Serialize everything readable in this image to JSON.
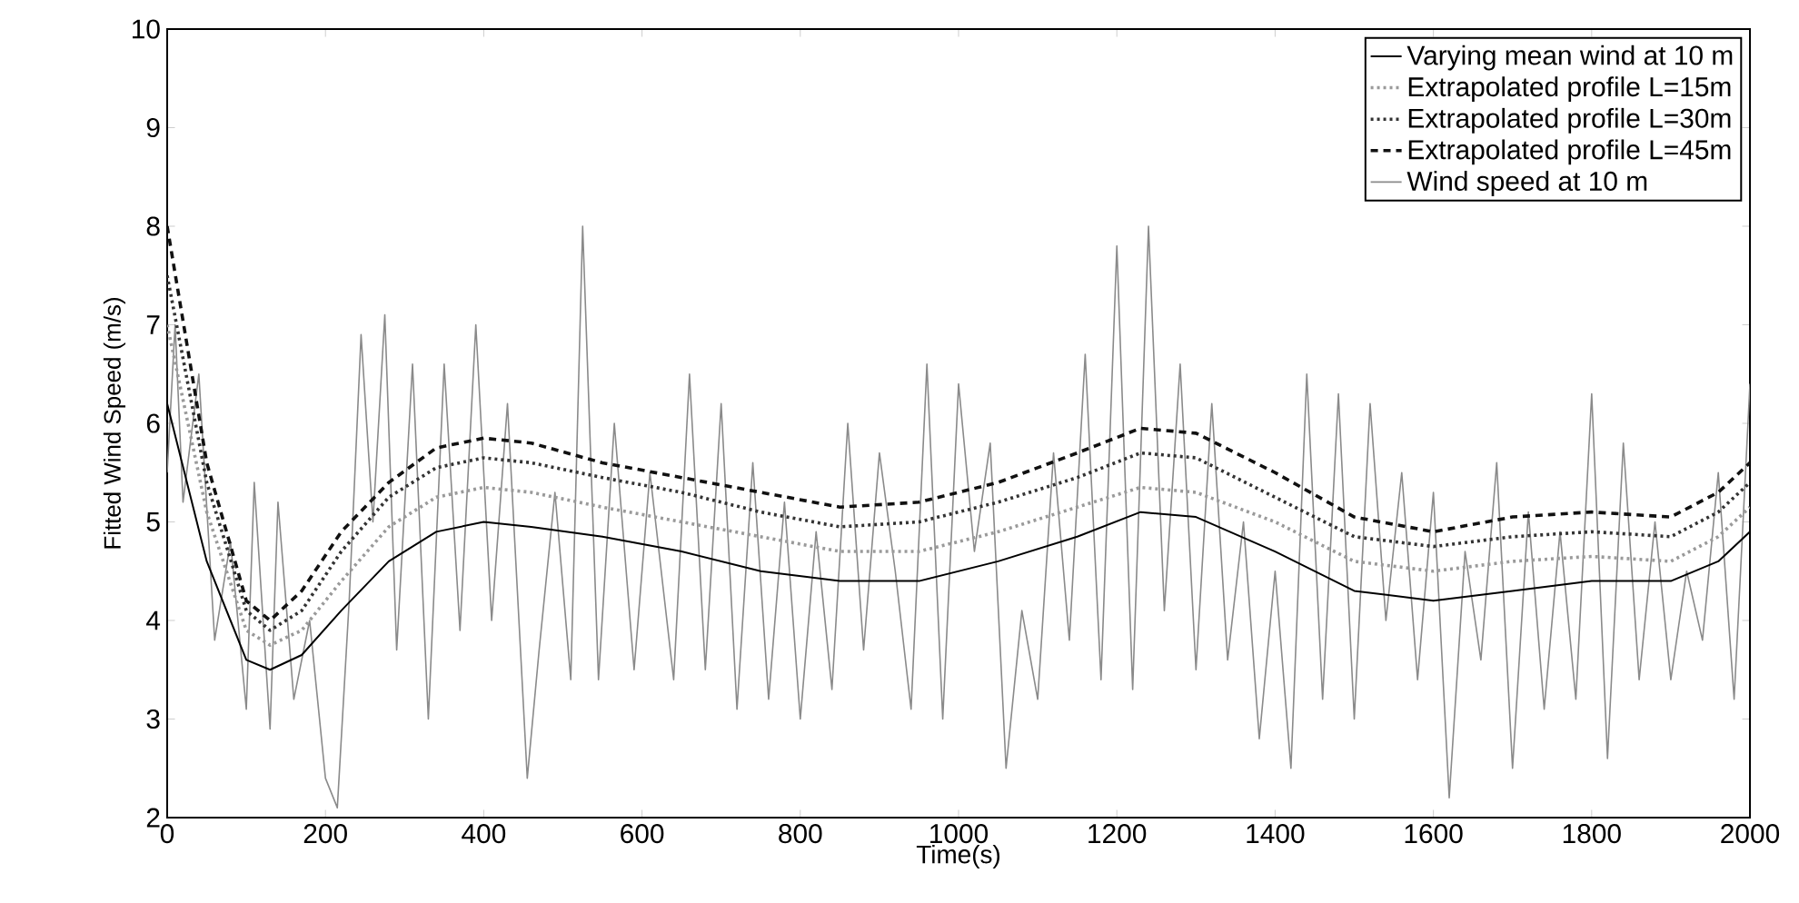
{
  "chart_data": {
    "type": "line",
    "xlabel": "Time(s)",
    "ylabel": "Fitted Wind Speed (m/s)",
    "xlim": [
      0,
      2000
    ],
    "ylim": [
      2,
      10
    ],
    "xticks": [
      0,
      200,
      400,
      600,
      800,
      1000,
      1200,
      1400,
      1600,
      1800,
      2000
    ],
    "yticks": [
      2,
      3,
      4,
      5,
      6,
      7,
      8,
      9,
      10
    ],
    "grid": false,
    "legend": "top right",
    "series": [
      {
        "name": "Varying mean wind at 10 m",
        "color": "#000000",
        "line_style": "solid",
        "x": [
          0,
          50,
          100,
          130,
          170,
          220,
          280,
          340,
          400,
          460,
          550,
          650,
          750,
          850,
          950,
          1050,
          1150,
          1230,
          1300,
          1400,
          1500,
          1600,
          1700,
          1800,
          1900,
          1960,
          2000
        ],
        "values": [
          6.2,
          4.6,
          3.6,
          3.5,
          3.65,
          4.1,
          4.6,
          4.9,
          5.0,
          4.95,
          4.85,
          4.7,
          4.5,
          4.4,
          4.4,
          4.6,
          4.85,
          5.1,
          5.05,
          4.7,
          4.3,
          4.2,
          4.3,
          4.4,
          4.4,
          4.6,
          4.9
        ]
      },
      {
        "name": "Extrapolated profile L=15m",
        "color": "#9a9a9a",
        "line_style": "dotted",
        "x": [
          0,
          50,
          100,
          130,
          170,
          220,
          280,
          340,
          400,
          460,
          550,
          650,
          750,
          850,
          950,
          1050,
          1150,
          1230,
          1300,
          1400,
          1500,
          1600,
          1700,
          1800,
          1900,
          1960,
          2000
        ],
        "values": [
          7.0,
          5.1,
          3.9,
          3.75,
          3.9,
          4.4,
          4.95,
          5.25,
          5.35,
          5.3,
          5.15,
          5.0,
          4.85,
          4.7,
          4.7,
          4.9,
          5.15,
          5.35,
          5.3,
          5.0,
          4.6,
          4.5,
          4.6,
          4.65,
          4.6,
          4.85,
          5.15
        ]
      },
      {
        "name": "Extrapolated profile L=30m",
        "color": "#333333",
        "line_style": "dotted",
        "x": [
          0,
          50,
          100,
          130,
          170,
          220,
          280,
          340,
          400,
          460,
          550,
          650,
          750,
          850,
          950,
          1050,
          1150,
          1230,
          1300,
          1400,
          1500,
          1600,
          1700,
          1800,
          1900,
          1960,
          2000
        ],
        "values": [
          7.5,
          5.4,
          4.1,
          3.9,
          4.1,
          4.7,
          5.25,
          5.55,
          5.65,
          5.6,
          5.45,
          5.3,
          5.1,
          4.95,
          5.0,
          5.2,
          5.45,
          5.7,
          5.65,
          5.25,
          4.85,
          4.75,
          4.85,
          4.9,
          4.85,
          5.1,
          5.4
        ]
      },
      {
        "name": "Extrapolated profile L=45m",
        "color": "#111111",
        "line_style": "dashed",
        "x": [
          0,
          50,
          100,
          130,
          170,
          220,
          280,
          340,
          400,
          460,
          550,
          650,
          750,
          850,
          950,
          1050,
          1150,
          1230,
          1300,
          1400,
          1500,
          1600,
          1700,
          1800,
          1900,
          1960,
          2000
        ],
        "values": [
          8.0,
          5.6,
          4.2,
          4.0,
          4.3,
          4.9,
          5.4,
          5.75,
          5.85,
          5.8,
          5.6,
          5.45,
          5.3,
          5.15,
          5.2,
          5.4,
          5.7,
          5.95,
          5.9,
          5.5,
          5.05,
          4.9,
          5.05,
          5.1,
          5.05,
          5.3,
          5.6
        ]
      },
      {
        "name": "Wind speed at 10 m",
        "color": "#8a8a8a",
        "line_style": "solid",
        "x": [
          0,
          10,
          20,
          40,
          60,
          80,
          100,
          110,
          130,
          140,
          160,
          180,
          200,
          215,
          230,
          245,
          260,
          275,
          290,
          310,
          330,
          350,
          370,
          390,
          410,
          430,
          455,
          470,
          490,
          510,
          525,
          545,
          565,
          590,
          610,
          640,
          660,
          680,
          700,
          720,
          740,
          760,
          780,
          800,
          820,
          840,
          860,
          880,
          900,
          920,
          940,
          960,
          980,
          1000,
          1020,
          1040,
          1060,
          1080,
          1100,
          1120,
          1140,
          1160,
          1180,
          1200,
          1220,
          1240,
          1260,
          1280,
          1300,
          1320,
          1340,
          1360,
          1380,
          1400,
          1420,
          1440,
          1460,
          1480,
          1500,
          1520,
          1540,
          1560,
          1580,
          1600,
          1620,
          1640,
          1660,
          1680,
          1700,
          1720,
          1740,
          1760,
          1780,
          1800,
          1820,
          1840,
          1860,
          1880,
          1900,
          1920,
          1940,
          1960,
          1980,
          2000
        ],
        "values": [
          5.5,
          7.0,
          5.2,
          6.5,
          3.8,
          4.8,
          3.1,
          5.4,
          2.9,
          5.2,
          3.2,
          4.0,
          2.4,
          2.1,
          4.2,
          6.9,
          5.0,
          7.1,
          3.7,
          6.6,
          3.0,
          6.6,
          3.9,
          7.0,
          4.0,
          6.2,
          2.4,
          3.7,
          5.3,
          3.4,
          8.0,
          3.4,
          6.0,
          3.5,
          5.5,
          3.4,
          6.5,
          3.5,
          6.2,
          3.1,
          5.6,
          3.2,
          5.2,
          3.0,
          4.9,
          3.3,
          6.0,
          3.7,
          5.7,
          4.5,
          3.1,
          6.6,
          3.0,
          6.4,
          4.7,
          5.8,
          2.5,
          4.1,
          3.2,
          5.7,
          3.8,
          6.7,
          3.4,
          7.8,
          3.3,
          8.0,
          4.1,
          6.6,
          3.5,
          6.2,
          3.6,
          5.0,
          2.8,
          4.5,
          2.5,
          6.5,
          3.2,
          6.3,
          3.0,
          6.2,
          4.0,
          5.5,
          3.4,
          5.3,
          2.2,
          4.7,
          3.6,
          5.6,
          2.5,
          5.1,
          3.1,
          4.9,
          3.2,
          6.3,
          2.6,
          5.8,
          3.4,
          5.0,
          3.4,
          4.5,
          3.8,
          5.5,
          3.2,
          6.4
        ]
      }
    ]
  }
}
